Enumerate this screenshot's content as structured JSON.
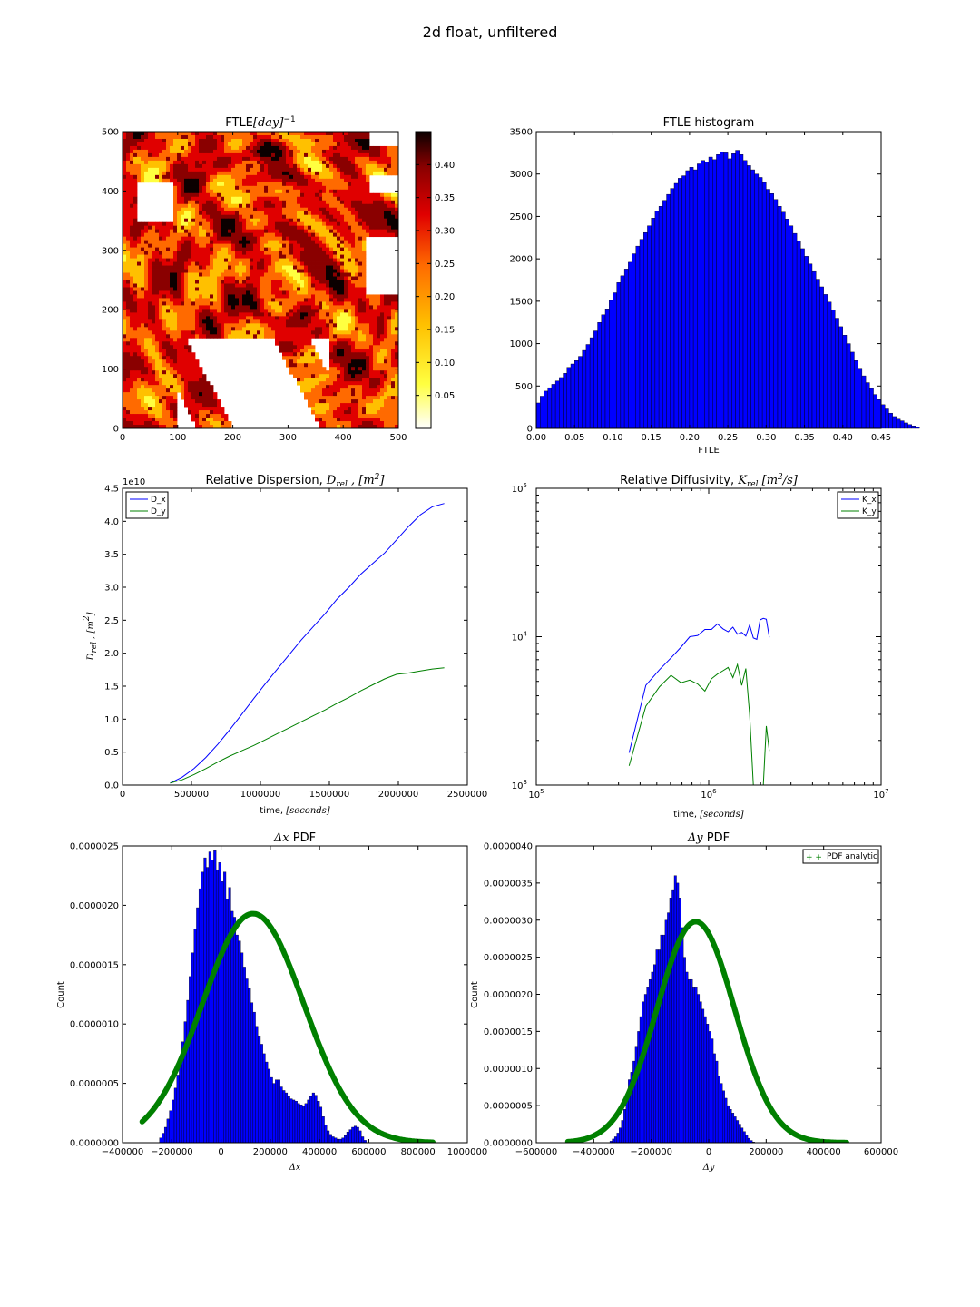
{
  "figure_title": "2d float, unfiltered",
  "chart_data": [
    {
      "id": "ftle_map",
      "type": "heatmap",
      "title": "FTLE",
      "title_math": "[day]",
      "title_sup": "−1",
      "xlim": [
        0,
        500
      ],
      "ylim": [
        0,
        500
      ],
      "xticks": [
        "0",
        "100",
        "200",
        "300",
        "400",
        "500"
      ],
      "yticks": [
        "0",
        "100",
        "200",
        "300",
        "400",
        "500"
      ],
      "colormap": "hot_r",
      "colorbar_range": [
        0,
        0.45
      ],
      "colorbar_ticks": [
        "0.05",
        "0.10",
        "0.15",
        "0.20",
        "0.25",
        "0.30",
        "0.35",
        "0.40"
      ],
      "colors": [
        "#ffffff",
        "#ffff40",
        "#ffc000",
        "#ff6a00",
        "#e00000",
        "#8a0000",
        "#0b0000"
      ]
    },
    {
      "id": "ftle_hist",
      "type": "bar",
      "title": "FTLE histogram",
      "xlabel": "FTLE",
      "xlim": [
        0,
        0.45
      ],
      "ylim": [
        0,
        3500
      ],
      "xticks": [
        "0.00",
        "0.05",
        "0.10",
        "0.15",
        "0.20",
        "0.25",
        "0.30",
        "0.35",
        "0.40",
        "0.45"
      ],
      "yticks": [
        "0",
        "500",
        "1000",
        "1500",
        "2000",
        "2500",
        "3000",
        "3500"
      ],
      "bin_width": 0.005,
      "bin_start": 0.0,
      "color": "#0000ff",
      "values": [
        300,
        380,
        440,
        480,
        520,
        560,
        600,
        650,
        720,
        760,
        800,
        850,
        920,
        990,
        1070,
        1150,
        1250,
        1340,
        1410,
        1510,
        1600,
        1720,
        1800,
        1880,
        1960,
        2060,
        2150,
        2230,
        2310,
        2390,
        2480,
        2560,
        2620,
        2690,
        2760,
        2830,
        2890,
        2950,
        2980,
        3040,
        3080,
        3050,
        3120,
        3160,
        3140,
        3200,
        3170,
        3230,
        3260,
        3250,
        3180,
        3240,
        3280,
        3230,
        3160,
        3100,
        3050,
        3000,
        2960,
        2900,
        2820,
        2770,
        2700,
        2620,
        2550,
        2470,
        2390,
        2300,
        2210,
        2120,
        2030,
        1940,
        1850,
        1760,
        1670,
        1580,
        1490,
        1400,
        1300,
        1200,
        1100,
        1000,
        900,
        800,
        710,
        620,
        540,
        470,
        400,
        340,
        280,
        230,
        180,
        140,
        110,
        90,
        65,
        45,
        30,
        18
      ]
    },
    {
      "id": "rel_dispersion",
      "type": "line",
      "title": "Relative Dispersion, ",
      "title_math": "D",
      "title_sub": "rel",
      "title_tail": " , [m",
      "title_sup": "2",
      "title_end": "]",
      "ylabel": "D_rel , [m^2]",
      "xlabel": "time, ",
      "xlabel_math": "[seconds]",
      "xlim": [
        0,
        2500000
      ],
      "ylim": [
        0,
        4.5
      ],
      "y_multiplier": "1e10",
      "xticks": [
        "0",
        "500000",
        "1000000",
        "1500000",
        "2000000",
        "2500000"
      ],
      "yticks": [
        "0.0",
        "0.5",
        "1.0",
        "1.5",
        "2.0",
        "2.5",
        "3.0",
        "3.5",
        "4.0",
        "4.5"
      ],
      "legend_position": "top-left",
      "series": [
        {
          "name": "D_x",
          "color": "#0000ff",
          "x": [
            345600,
            432000,
            518400,
            604800,
            691200,
            777600,
            864000,
            950400,
            1036800,
            1123200,
            1209600,
            1296000,
            1382400,
            1468800,
            1555200,
            1641600,
            1728000,
            1814400,
            1900800,
            1987200,
            2073600,
            2160000,
            2246400,
            2332800
          ],
          "y": [
            0.03,
            0.12,
            0.25,
            0.42,
            0.62,
            0.84,
            1.07,
            1.31,
            1.54,
            1.76,
            1.98,
            2.2,
            2.4,
            2.6,
            2.82,
            3.0,
            3.2,
            3.36,
            3.52,
            3.72,
            3.92,
            4.1,
            4.22,
            4.27
          ]
        },
        {
          "name": "D_y",
          "color": "#008000",
          "x": [
            345600,
            432000,
            518400,
            604800,
            691200,
            777600,
            864000,
            950400,
            1036800,
            1123200,
            1209600,
            1296000,
            1382400,
            1468800,
            1555200,
            1641600,
            1728000,
            1814400,
            1900800,
            1987200,
            2073600,
            2160000,
            2246400,
            2332800
          ],
          "y": [
            0.03,
            0.08,
            0.16,
            0.25,
            0.35,
            0.44,
            0.52,
            0.6,
            0.69,
            0.78,
            0.87,
            0.96,
            1.05,
            1.14,
            1.24,
            1.33,
            1.43,
            1.52,
            1.61,
            1.68,
            1.7,
            1.73,
            1.76,
            1.78
          ]
        }
      ]
    },
    {
      "id": "rel_diffusivity",
      "type": "line",
      "title": "Relative Diffusivity, ",
      "title_math": "K",
      "title_sub": "rel",
      "title_tail": " [m",
      "title_sup": "2",
      "title_end": "/s]",
      "xlabel": "time, ",
      "xlabel_math": "[seconds]",
      "xscale": "log",
      "yscale": "log",
      "xlim": [
        100000,
        10000000
      ],
      "ylim": [
        1000,
        100000
      ],
      "xticks_exp": [
        "5",
        "6",
        "7"
      ],
      "yticks_exp": [
        "3",
        "4",
        "5"
      ],
      "legend_position": "top-right",
      "series": [
        {
          "name": "K_x",
          "color": "#0000ff",
          "x": [
            345600,
            432000,
            518400,
            604800,
            691200,
            777600,
            864000,
            950400,
            1036800,
            1123200,
            1209600,
            1296000,
            1382400,
            1468800,
            1555200,
            1641600,
            1728000,
            1814400,
            1900800,
            1987200,
            2073600,
            2160000,
            2246400
          ],
          "y": [
            1650,
            4700,
            6000,
            7200,
            8500,
            10000,
            10200,
            11200,
            11200,
            12200,
            11300,
            10800,
            11600,
            10400,
            10700,
            10100,
            12000,
            9800,
            9600,
            13000,
            13300,
            13100,
            9900
          ]
        },
        {
          "name": "K_y",
          "color": "#008000",
          "x": [
            345600,
            432000,
            518400,
            604800,
            691200,
            777600,
            864000,
            950400,
            1036800,
            1123200,
            1209600,
            1296000,
            1382400,
            1468800,
            1555200,
            1641600,
            1728000,
            1814400,
            1900800,
            1987200,
            2073600,
            2160000,
            2246400
          ],
          "y": [
            1350,
            3400,
            4600,
            5500,
            4900,
            5100,
            4800,
            4300,
            5200,
            5600,
            5900,
            6200,
            5300,
            6500,
            4700,
            6100,
            3000,
            1000,
            1000,
            1000,
            1000,
            2500,
            1700
          ]
        }
      ]
    },
    {
      "id": "dx_pdf",
      "type": "bar",
      "title_math": "Δx",
      "title": " PDF",
      "xlabel_math": "Δx",
      "ylabel": "Count",
      "xlim": [
        -400000,
        1000000
      ],
      "ylim": [
        0,
        2.5e-06
      ],
      "xticks": [
        "−400000",
        "−200000",
        "0",
        "200000",
        "400000",
        "600000",
        "800000",
        "1000000"
      ],
      "yticks": [
        "0.0000000",
        "0.0000005",
        "0.0000010",
        "0.0000015",
        "0.0000020",
        "0.0000025"
      ],
      "bin_start": -320000,
      "bin_width": 10000,
      "color": "#0000ff",
      "values": [
        0,
        0,
        0,
        0,
        0,
        0,
        0,
        4e-08,
        8e-08,
        1.3e-07,
        2e-07,
        2.7e-07,
        3.6e-07,
        4.6e-07,
        5.7e-07,
        7e-07,
        8.5e-07,
        1.02e-06,
        1.2e-06,
        1.4e-06,
        1.6e-06,
        1.8e-06,
        1.98e-06,
        2.14e-06,
        2.28e-06,
        2.4e-06,
        2.32e-06,
        2.45e-06,
        2.38e-06,
        2.46e-06,
        2.3e-06,
        2.36e-06,
        2.2e-06,
        2.28e-06,
        2.05e-06,
        2.15e-06,
        1.95e-06,
        1.9e-06,
        1.75e-06,
        1.7e-06,
        1.6e-06,
        1.48e-06,
        1.38e-06,
        1.3e-06,
        1.18e-06,
        1.1e-06,
        9.8e-07,
        9e-07,
        8.3e-07,
        7.5e-07,
        6.8e-07,
        6.2e-07,
        5.5e-07,
        5e-07,
        5.3e-07,
        5.3e-07,
        4.7e-07,
        4.4e-07,
        4.2e-07,
        3.9e-07,
        3.7e-07,
        3.6e-07,
        3.5e-07,
        3.3e-07,
        3.2e-07,
        3.1e-07,
        3.3e-07,
        3.6e-07,
        3.9e-07,
        4.2e-07,
        4e-07,
        3.5e-07,
        3e-07,
        2.2e-07,
        1.5e-07,
        1e-07,
        7e-08,
        5e-08,
        4e-08,
        3e-08,
        3e-08,
        4e-08,
        6e-08,
        9e-08,
        1.1e-07,
        1.3e-07,
        1.4e-07,
        1.3e-07,
        1e-07,
        5e-08,
        2e-08,
        0,
        0,
        0,
        0,
        0,
        0,
        0,
        0,
        0,
        0,
        0,
        0,
        0,
        0,
        0,
        0,
        0,
        0,
        0,
        0,
        0,
        0,
        0,
        0,
        0,
        0,
        0,
        0,
        0
      ],
      "curve": {
        "name": "PDF analytic",
        "color": "#008000",
        "mean": 130000,
        "std": 206000,
        "peak": 1.93e-06,
        "x_range": [
          -320000,
          860000
        ]
      }
    },
    {
      "id": "dy_pdf",
      "type": "bar",
      "title_math": "Δy",
      "title": " PDF",
      "xlabel_math": "Δy",
      "ylabel": "Count",
      "xlim": [
        -600000,
        600000
      ],
      "ylim": [
        0,
        4e-06
      ],
      "xticks": [
        "−600000",
        "−400000",
        "−200000",
        "0",
        "200000",
        "400000",
        "600000"
      ],
      "yticks": [
        "0.0000000",
        "0.0000005",
        "0.0000010",
        "0.0000015",
        "0.0000020",
        "0.0000025",
        "0.0000030",
        "0.0000035",
        "0.0000040"
      ],
      "bin_start": -480000,
      "bin_width": 8000,
      "color": "#0000ff",
      "legend_position": "top-right",
      "values": [
        0,
        0,
        0,
        0,
        0,
        0,
        0,
        0,
        0,
        0,
        0,
        0,
        0,
        0,
        0,
        0,
        0,
        2e-08,
        5e-08,
        8e-08,
        1.3e-07,
        2e-07,
        3e-07,
        4.5e-07,
        6.5e-07,
        8.5e-07,
        9.5e-07,
        1.1e-06,
        1.3e-06,
        1.5e-06,
        1.7e-06,
        1.9e-06,
        2e-06,
        2.1e-06,
        2.2e-06,
        2.3e-06,
        2.4e-06,
        2.6e-06,
        2.6e-06,
        2.8e-06,
        2.8e-06,
        3e-06,
        3.1e-06,
        3.3e-06,
        3.4e-06,
        3.6e-06,
        3.5e-06,
        3.3e-06,
        2.9e-06,
        2.5e-06,
        2.3e-06,
        2.2e-06,
        2.2e-06,
        2.1e-06,
        2.1e-06,
        2e-06,
        1.9e-06,
        1.8e-06,
        1.7e-06,
        1.6e-06,
        1.5e-06,
        1.4e-06,
        1.2e-06,
        1.1e-06,
        9e-07,
        8e-07,
        7e-07,
        6e-07,
        5e-07,
        4.5e-07,
        4e-07,
        3.5e-07,
        3e-07,
        2.5e-07,
        2e-07,
        1.5e-07,
        1e-07,
        6e-08,
        3e-08,
        1e-08,
        0,
        0,
        0,
        0,
        0,
        0,
        0,
        0,
        0,
        0,
        0,
        0,
        0,
        0,
        0,
        0,
        0,
        0,
        0,
        0,
        0,
        0,
        0,
        0,
        0,
        0,
        0,
        0,
        0,
        0,
        0,
        0,
        0,
        0,
        0
      ],
      "curve": {
        "name": "PDF analytic",
        "color": "#008000",
        "mean": -45000,
        "std": 135000,
        "peak": 2.98e-06,
        "x_range": [
          -490000,
          480000
        ]
      }
    }
  ]
}
